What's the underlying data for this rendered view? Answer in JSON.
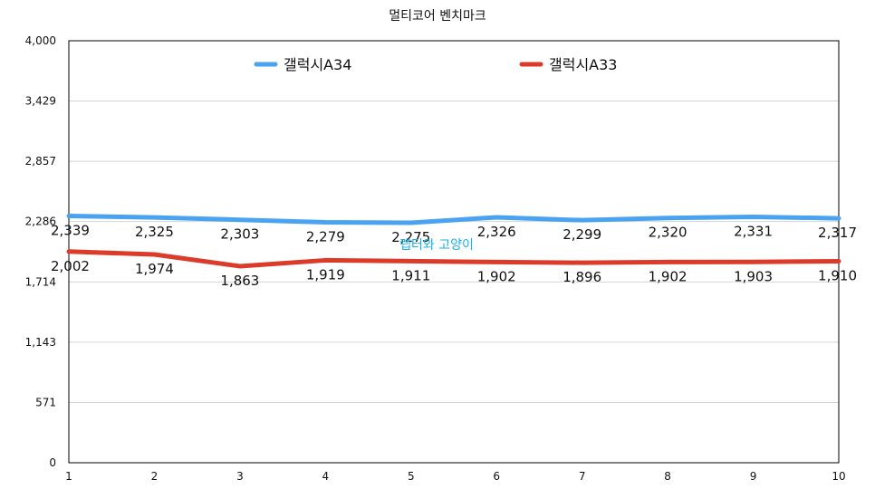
{
  "chart_data": {
    "type": "line",
    "title": "멀티코어 벤치마크",
    "xlabel": "",
    "ylabel": "",
    "x": [
      "1",
      "2",
      "3",
      "4",
      "5",
      "6",
      "7",
      "8",
      "9",
      "10"
    ],
    "ylim": [
      0,
      4000
    ],
    "yticks": [
      0,
      571,
      1143,
      1714,
      2286,
      2857,
      3429,
      4000
    ],
    "ytick_labels": [
      "0",
      "571",
      "1,143",
      "1,714",
      "2,286",
      "2,857",
      "3,429",
      "4,000"
    ],
    "grid": true,
    "legend_position": "top",
    "series": [
      {
        "name": "갤럭시A34",
        "color": "#4aa3f0",
        "values": [
          2339,
          2325,
          2303,
          2279,
          2275,
          2326,
          2299,
          2320,
          2331,
          2317
        ],
        "labels": [
          "2,339",
          "2,325",
          "2,303",
          "2,279",
          "2,275",
          "2,326",
          "2,299",
          "2,320",
          "2,331",
          "2,317"
        ]
      },
      {
        "name": "갤럭시A33",
        "color": "#dc3b2a",
        "values": [
          2002,
          1974,
          1863,
          1919,
          1911,
          1902,
          1896,
          1902,
          1903,
          1910
        ],
        "labels": [
          "2,002",
          "1,974",
          "1,863",
          "1,919",
          "1,911",
          "1,902",
          "1,896",
          "1,902",
          "1,903",
          "1,910"
        ]
      }
    ],
    "annotation": "랩터와 고양이"
  }
}
